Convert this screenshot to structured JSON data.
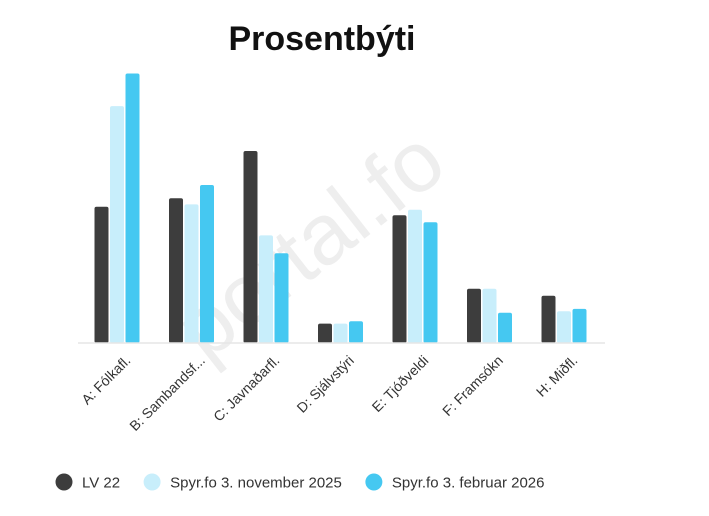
{
  "watermark": "portal.fo",
  "chart_data": {
    "type": "bar",
    "title": "Prosentbýti",
    "xlabel": "",
    "ylabel": "",
    "ylim": [
      0,
      35
    ],
    "grid": false,
    "legend_position": "bottom",
    "categories": [
      "A: Fólkafl.",
      "B: Sambandsf...",
      "C: Javnaðarfl.",
      "D: Sjálvstýri",
      "E: Tjóðveldi",
      "F: Framsókn",
      "H: Miðfl."
    ],
    "series": [
      {
        "name": "LV 22",
        "color": "#3d3d3d",
        "values": [
          17.6,
          18.7,
          24.8,
          2.5,
          16.5,
          7.0,
          6.1
        ]
      },
      {
        "name": "Spyr.fo 3. november 2025",
        "color": "#c8eefb",
        "values": [
          30.6,
          17.9,
          13.9,
          2.5,
          17.2,
          7.0,
          4.1
        ]
      },
      {
        "name": "Spyr.fo 3. februar 2026",
        "color": "#45c8f1",
        "values": [
          34.8,
          20.4,
          11.6,
          2.8,
          15.6,
          3.9,
          4.4
        ]
      }
    ]
  }
}
